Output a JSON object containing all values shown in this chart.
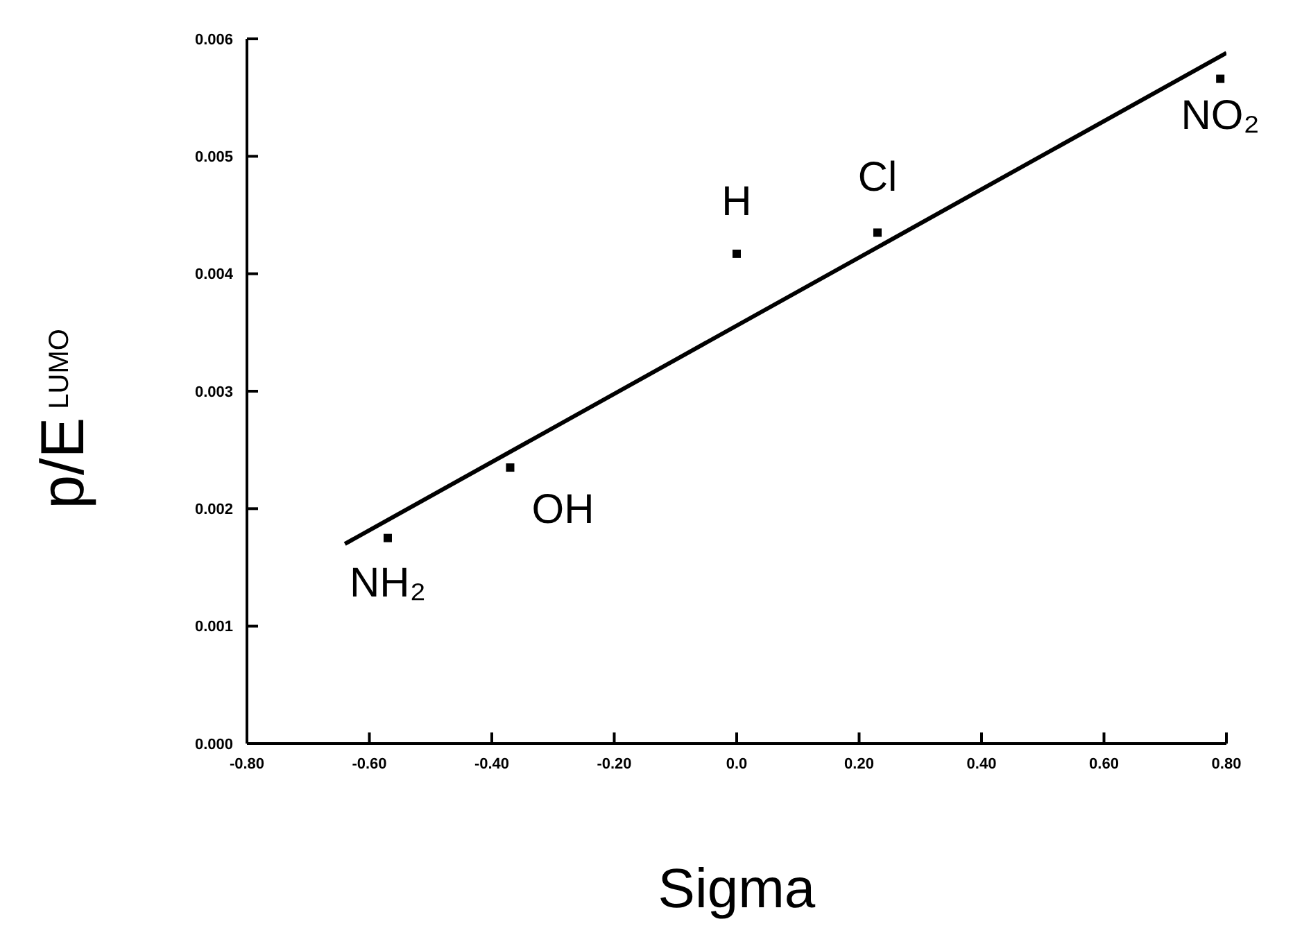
{
  "chart_data": {
    "type": "scatter",
    "xlabel": "Sigma",
    "ylabel": "p/E$^{LUMO}$",
    "xlim": [
      -0.8,
      0.8
    ],
    "xticks": [
      {
        "value": -0.8,
        "label": "-0.80"
      },
      {
        "value": -0.6,
        "label": "-0.60"
      },
      {
        "value": -0.4,
        "label": "-0.40"
      },
      {
        "value": -0.2,
        "label": "-0.20"
      },
      {
        "value": 0,
        "label": "0.0"
      },
      {
        "value": 0.2,
        "label": "0.20"
      },
      {
        "value": 0.4,
        "label": "0.40"
      },
      {
        "value": 0.6,
        "label": "0.60"
      },
      {
        "value": 0.8,
        "label": "0.80"
      }
    ],
    "ylim": [
      0,
      0.006
    ],
    "yticks": [
      {
        "value": 0,
        "label": "0.000"
      },
      {
        "value": 0.001,
        "label": "0.001"
      },
      {
        "value": 0.002,
        "label": "0.002"
      },
      {
        "value": 0.003,
        "label": "0.003"
      },
      {
        "value": 0.004,
        "label": "0.004"
      },
      {
        "value": 0.005,
        "label": "0.005"
      },
      {
        "value": 0.006,
        "label": "0.006"
      }
    ],
    "grid": false,
    "legend": false,
    "marker": "square",
    "series": [
      {
        "color": "#000000",
        "x": [
          -0.57,
          -0.37,
          0.0,
          0.23,
          0.79
        ],
        "values": [
          0.00175,
          0.00235,
          0.00417,
          0.00435,
          0.00566
        ]
      },
      {
        "type": "line",
        "color": "#000000",
        "marker": "none",
        "line_style": "solid",
        "x": [
          -0.64,
          0.8
        ],
        "values": [
          0.0017,
          0.00588
        ]
      }
    ],
    "annotations": [
      {
        "text": "NH₂",
        "x": -0.57,
        "y": 0.00175
      },
      {
        "text": "OH",
        "x": -0.37,
        "y": 0.00235
      },
      {
        "text": "H",
        "x": 0.0,
        "y": 0.00417
      },
      {
        "text": "Cl",
        "x": 0.23,
        "y": 0.00435
      },
      {
        "text": "NO₂",
        "x": 0.79,
        "y": 0.00566
      }
    ]
  }
}
